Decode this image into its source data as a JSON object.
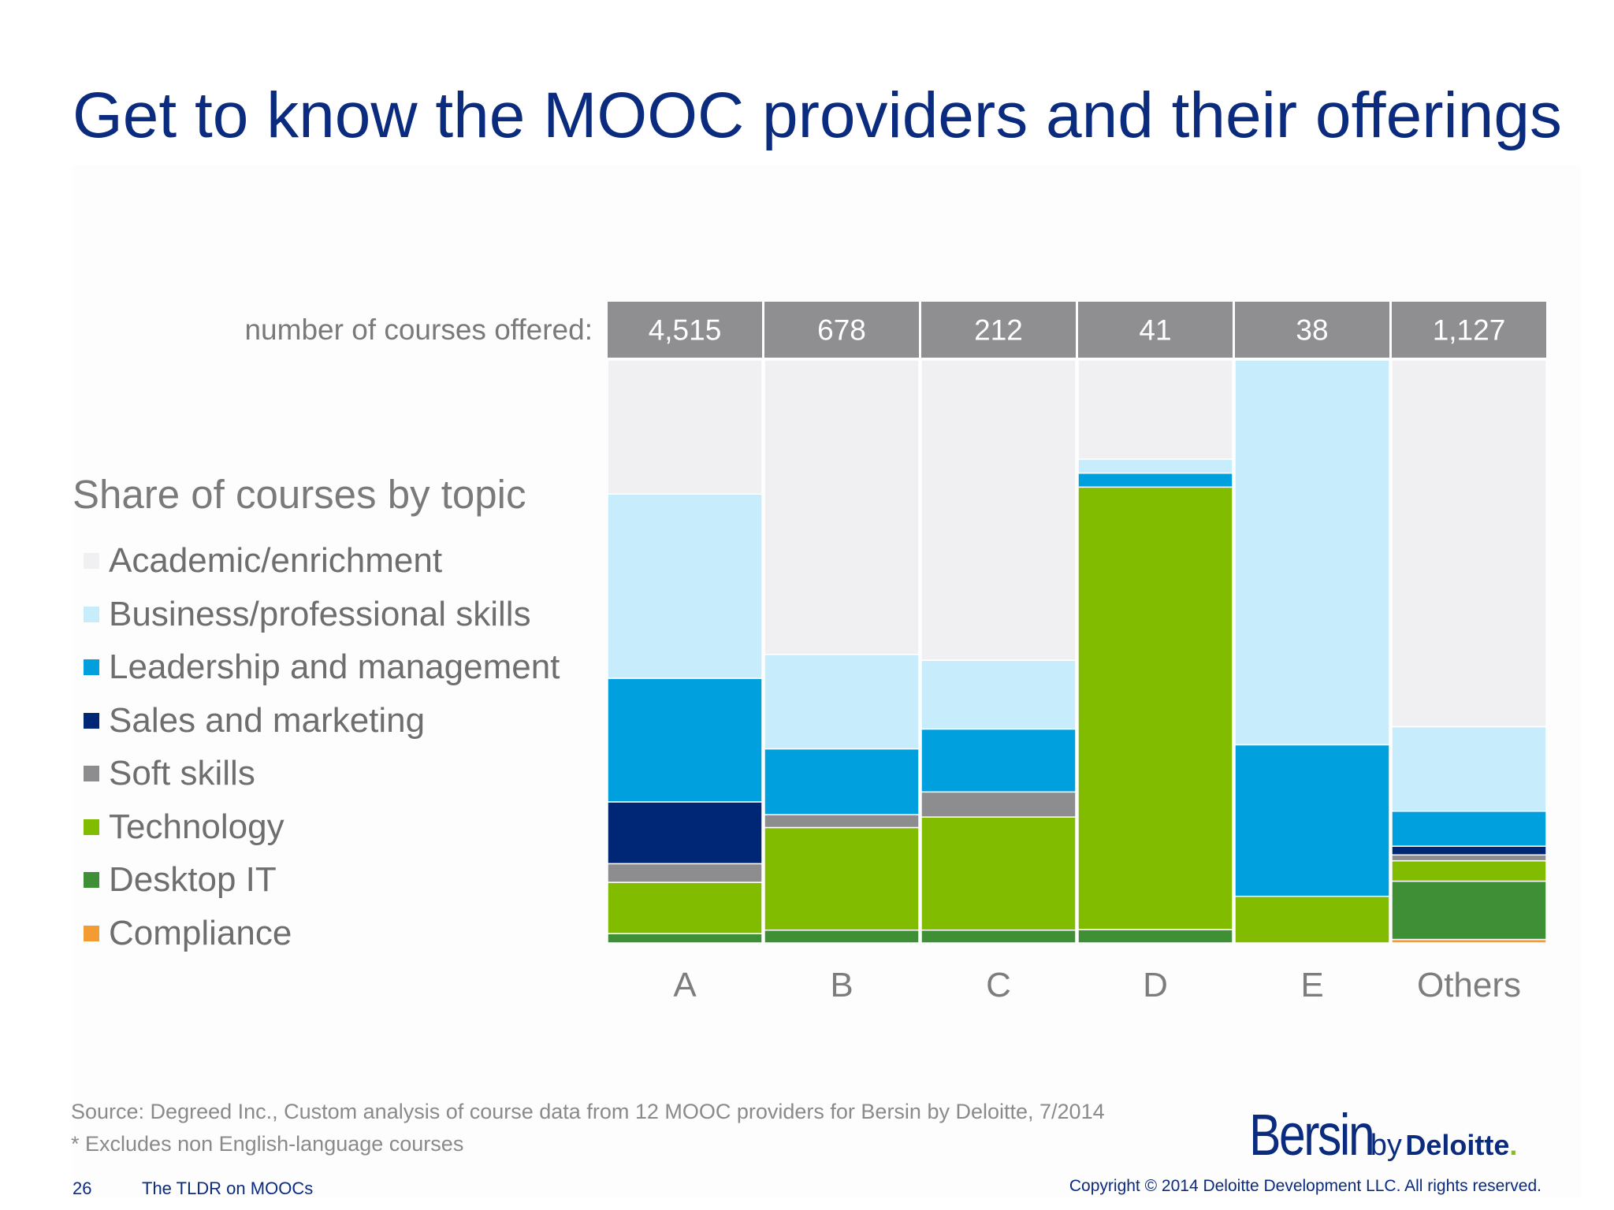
{
  "slide": {
    "title": "Get to know the MOOC providers and their offerings",
    "count_label": "number of courses offered:",
    "legend_title": "Share of courses by topic",
    "source": "Source: Degreed Inc., Custom analysis of course data from 12 MOOC providers for Bersin by Deloitte, 7/2014",
    "note": "* Excludes non English-language courses",
    "page_number": "26",
    "deck_name": "The TLDR on MOOCs",
    "copyright": "Copyright © 2014 Deloitte Development LLC. All rights reserved.",
    "logo": {
      "word1": "Bersin",
      "word2": "by",
      "word3": "Deloitte",
      "dot": "."
    }
  },
  "chart_data": {
    "type": "bar",
    "stacked": true,
    "normalized": true,
    "title": "Share of courses by topic",
    "categories": [
      "A",
      "B",
      "C",
      "D",
      "E",
      "Others"
    ],
    "course_counts": [
      "4,515",
      "678",
      "212",
      "41",
      "38",
      "1,127"
    ],
    "ylim": [
      0,
      100
    ],
    "grid": false,
    "legend_position": "left",
    "series": [
      {
        "name": "Compliance",
        "color": "#f39c34",
        "values": [
          0,
          0,
          0,
          0,
          0,
          0.6
        ]
      },
      {
        "name": "Desktop IT",
        "color": "#3f8f36",
        "values": [
          1.6,
          2.2,
          2.2,
          2.3,
          0,
          10.0
        ]
      },
      {
        "name": "Technology",
        "color": "#82bc00",
        "values": [
          8.8,
          17.6,
          19.4,
          75.9,
          8.0,
          3.5
        ]
      },
      {
        "name": "Soft skills",
        "color": "#8d8d8f",
        "values": [
          3.2,
          2.2,
          4.3,
          0,
          0,
          1.0
        ]
      },
      {
        "name": "Sales and marketing",
        "color": "#002776",
        "values": [
          10.6,
          0,
          0,
          0,
          0,
          1.5
        ]
      },
      {
        "name": "Leadership and management",
        "color": "#00a0de",
        "values": [
          21.2,
          11.3,
          10.8,
          2.4,
          26.0,
          6.0
        ]
      },
      {
        "name": "Business/professional skills",
        "color": "#c7ecfb",
        "values": [
          31.6,
          16.2,
          11.8,
          2.4,
          66.0,
          14.5
        ]
      },
      {
        "name": "Academic/enrichment",
        "color": "#f0eff1",
        "values": [
          23.0,
          50.5,
          51.5,
          17.0,
          0,
          62.9
        ]
      }
    ]
  }
}
